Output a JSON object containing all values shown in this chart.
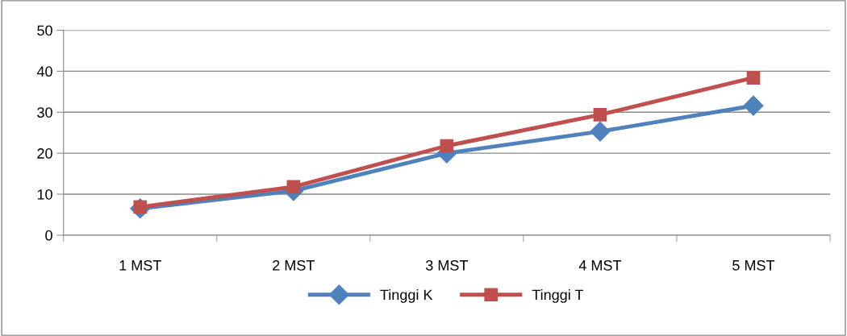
{
  "chart_data": {
    "type": "line",
    "categories": [
      "1 MST",
      "2 MST",
      "3 MST",
      "4 MST",
      "5 MST"
    ],
    "series": [
      {
        "name": "Tinggi K",
        "color": "#4f81bd",
        "marker": "diamond",
        "values": [
          6.5,
          10.8,
          20,
          25.3,
          31.6
        ]
      },
      {
        "name": "Tinggi T",
        "color": "#c0504d",
        "marker": "square",
        "values": [
          6.9,
          11.8,
          21.8,
          29.4,
          38.4
        ]
      }
    ],
    "ylim": [
      0,
      50
    ],
    "yticks": [
      0,
      10,
      20,
      30,
      40,
      50
    ],
    "grid": "y",
    "legend": "bottom",
    "line_style": "solid"
  }
}
